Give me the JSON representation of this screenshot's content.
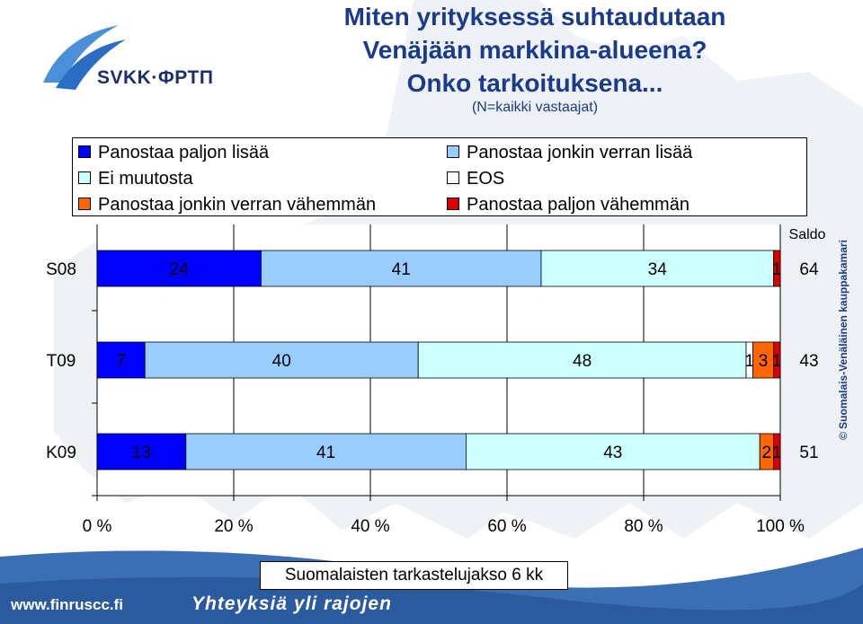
{
  "header": {
    "logo_text": "SVKK·ФРТП",
    "title_line1": "Miten yrityksessä suhtaudutaan",
    "title_line2": "Venäjään markkina-alueena?",
    "title_line3": "Onko tarkoituksena...",
    "subtitle": "(N=kaikki vastaajat)"
  },
  "footer": {
    "period_label": "Suomalaisten tarkastelujakso 6 kk",
    "url": "www.finruscc.fi",
    "slogan": "Yhteyksiä yli rajojen",
    "side_text": "© Suomalais-Venäläinen kauppakamari"
  },
  "chart_data": {
    "type": "bar",
    "orientation": "horizontal-stacked-100",
    "categories": [
      "S08",
      "T09",
      "K09"
    ],
    "series": [
      {
        "name": "Panostaa paljon lisää",
        "color": "#0000ff",
        "values": [
          24,
          7,
          13
        ],
        "labels": [
          "24",
          "7",
          "13"
        ]
      },
      {
        "name": "Panostaa jonkin verran lisää",
        "color": "#99ccff",
        "values": [
          41,
          40,
          41
        ],
        "labels": [
          "41",
          "40",
          "41"
        ]
      },
      {
        "name": "Ei muutosta",
        "color": "#ccffff",
        "values": [
          34,
          48,
          43
        ],
        "labels": [
          "34",
          "48",
          "43"
        ]
      },
      {
        "name": "EOS",
        "color": "#ffffff",
        "values": [
          0,
          1,
          0
        ],
        "labels": [
          "",
          "1",
          ""
        ]
      },
      {
        "name": "Panostaa jonkin verran vähemmän",
        "color": "#ff6600",
        "values": [
          0,
          3,
          2
        ],
        "labels": [
          "",
          "3",
          "2"
        ]
      },
      {
        "name": "Panostaa paljon vähemmän",
        "color": "#dd0000",
        "values": [
          1,
          1,
          1
        ],
        "labels": [
          "1",
          "1",
          "1"
        ]
      }
    ],
    "saldo_label": "Saldo",
    "saldo": [
      "64",
      "43",
      "51"
    ],
    "x_ticks": [
      "0 %",
      "20 %",
      "40 %",
      "60 %",
      "80 %",
      "100 %"
    ],
    "xlim": [
      0,
      100
    ],
    "grid": true,
    "legend_position": "top"
  }
}
